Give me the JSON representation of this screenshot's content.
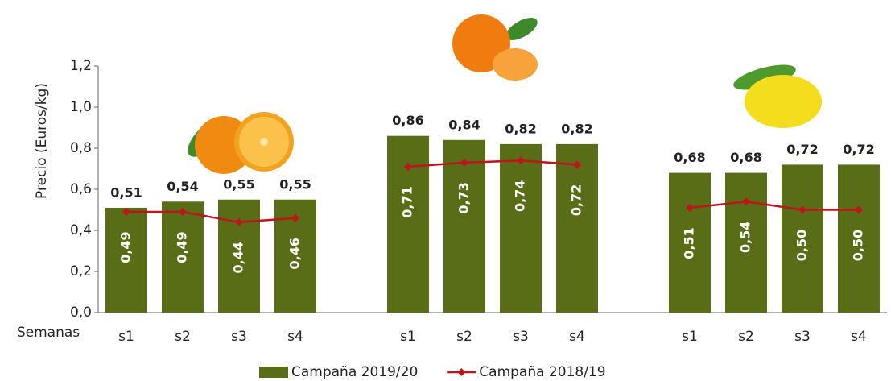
{
  "chart_data": {
    "type": "bar",
    "y_label": "Precio (Euros/kg)",
    "x_label": "Semanas",
    "categories": [
      "s1",
      "s2",
      "s3",
      "s4",
      null,
      "s1",
      "s2",
      "s3",
      "s4",
      null,
      "s1",
      "s2",
      "s3",
      "s4"
    ],
    "series": [
      {
        "name": "Campaña 2019/20",
        "type": "bar",
        "color": "#586d16",
        "values": [
          0.51,
          0.54,
          0.55,
          0.55,
          null,
          0.86,
          0.84,
          0.82,
          0.82,
          null,
          0.68,
          0.68,
          0.72,
          0.72
        ],
        "value_labels": [
          "0,51",
          "0,54",
          "0,55",
          "0,55",
          null,
          "0,86",
          "0,84",
          "0,82",
          "0,82",
          null,
          "0,68",
          "0,68",
          "0,72",
          "0,72"
        ]
      },
      {
        "name": "Campaña 2018/19",
        "type": "line",
        "color": "#c0141c",
        "values": [
          0.49,
          0.49,
          0.44,
          0.46,
          null,
          0.71,
          0.73,
          0.74,
          0.72,
          null,
          0.51,
          0.54,
          0.5,
          0.5
        ],
        "value_labels": [
          "0,49",
          "0,49",
          "0,44",
          "0,46",
          null,
          "0,71",
          "0,73",
          "0,74",
          "0,72",
          null,
          "0,51",
          "0,54",
          "0,50",
          "0,50"
        ]
      }
    ],
    "ylim": [
      0,
      1.2
    ],
    "yticks": [
      {
        "value": 0,
        "label": "0,0"
      },
      {
        "value": 0.2,
        "label": "0,2"
      },
      {
        "value": 0.4,
        "label": "0,4"
      },
      {
        "value": 0.6,
        "label": "0,6"
      },
      {
        "value": 0.8,
        "label": "0,8"
      },
      {
        "value": 1.0,
        "label": "1,0"
      },
      {
        "value": 1.2,
        "label": "1,2"
      }
    ]
  }
}
